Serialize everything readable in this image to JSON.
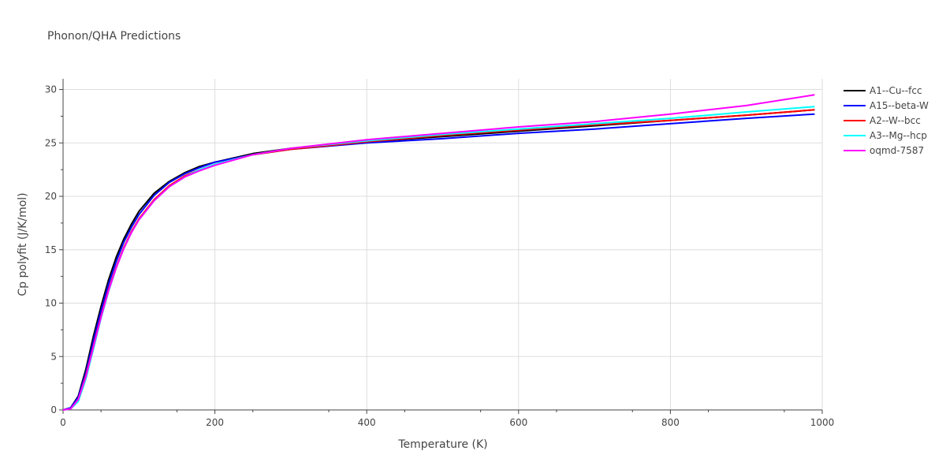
{
  "chart_data": {
    "type": "line",
    "title": "Phonon/QHA Predictions",
    "xlabel": "Temperature (K)",
    "ylabel": "Cp polyfit (J/K/mol)",
    "xlim": [
      0,
      1000
    ],
    "ylim": [
      0,
      31
    ],
    "xticks": [
      0,
      200,
      400,
      600,
      800,
      1000
    ],
    "yticks": [
      0,
      5,
      10,
      15,
      20,
      25,
      30
    ],
    "grid": true,
    "legend_position": "top-right",
    "x": [
      0,
      10,
      20,
      30,
      40,
      50,
      60,
      70,
      80,
      90,
      100,
      120,
      140,
      160,
      180,
      200,
      250,
      300,
      400,
      500,
      600,
      700,
      800,
      900,
      990
    ],
    "series": [
      {
        "name": "A1--Cu--fcc",
        "color": "#000000",
        "values": [
          0,
          0.2,
          1.3,
          3.8,
          6.9,
          9.7,
          12.2,
          14.3,
          16.0,
          17.4,
          18.6,
          20.3,
          21.4,
          22.2,
          22.8,
          23.2,
          24.0,
          24.5,
          25.1,
          25.6,
          26.1,
          26.6,
          27.1,
          27.6,
          28.1
        ]
      },
      {
        "name": "A15--beta-W",
        "color": "#0000ff",
        "values": [
          0,
          0.2,
          1.2,
          3.5,
          6.5,
          9.3,
          11.8,
          13.9,
          15.7,
          17.1,
          18.3,
          20.1,
          21.3,
          22.1,
          22.7,
          23.2,
          23.9,
          24.4,
          25.0,
          25.4,
          25.9,
          26.3,
          26.8,
          27.3,
          27.7
        ]
      },
      {
        "name": "A2--W--bcc",
        "color": "#ff0000",
        "values": [
          0,
          0.1,
          1.0,
          3.2,
          6.0,
          8.8,
          11.3,
          13.4,
          15.2,
          16.7,
          17.9,
          19.7,
          21.0,
          21.9,
          22.5,
          23.0,
          23.9,
          24.4,
          25.1,
          25.7,
          26.2,
          26.7,
          27.1,
          27.6,
          28.1
        ]
      },
      {
        "name": "A3--Mg--hcp",
        "color": "#00ffff",
        "values": [
          0,
          0.1,
          0.8,
          2.9,
          5.7,
          8.6,
          11.1,
          13.3,
          15.1,
          16.6,
          17.8,
          19.6,
          20.9,
          21.8,
          22.5,
          23.0,
          23.9,
          24.5,
          25.2,
          25.8,
          26.3,
          26.8,
          27.3,
          27.9,
          28.4
        ]
      },
      {
        "name": "oqmd-7587",
        "color": "#ff00ff",
        "values": [
          0,
          0.1,
          1.0,
          3.1,
          5.9,
          8.7,
          11.2,
          13.3,
          15.1,
          16.6,
          17.8,
          19.6,
          20.9,
          21.8,
          22.4,
          22.9,
          23.9,
          24.5,
          25.3,
          25.9,
          26.5,
          27.0,
          27.7,
          28.5,
          29.5
        ]
      }
    ]
  }
}
